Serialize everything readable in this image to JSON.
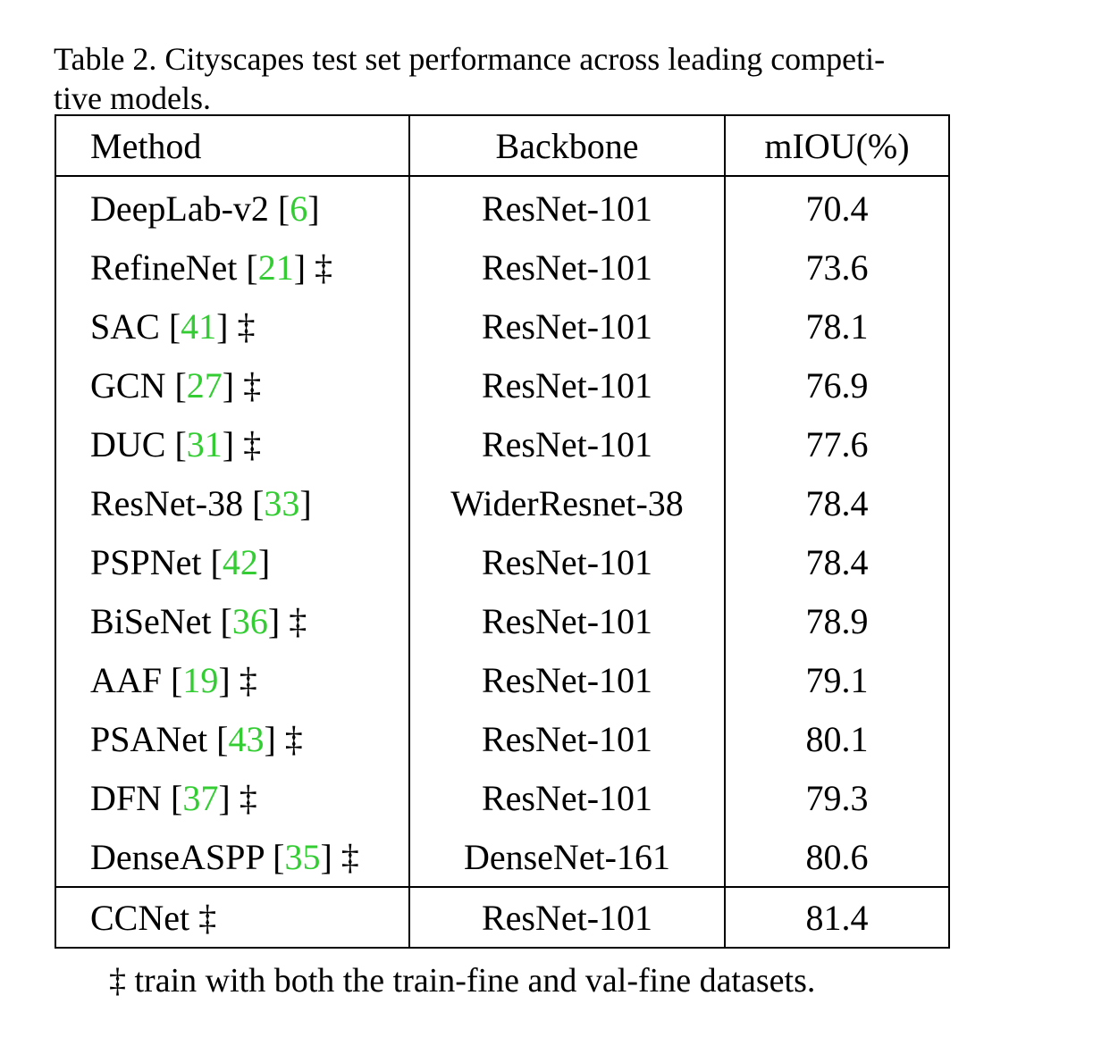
{
  "caption": "Table 2. Cityscapes test set performance across leading competi-tive models.",
  "caption_line1": "Table 2. Cityscapes test set performance across leading competi-",
  "caption_line2": "tive models.",
  "headers": {
    "method": "Method",
    "backbone": "Backbone",
    "miou": "mIOU(%)"
  },
  "rows": [
    {
      "method": "DeepLab-v2",
      "cite": "6",
      "dagger": "",
      "backbone": "ResNet-101",
      "miou": "70.4"
    },
    {
      "method": "RefineNet",
      "cite": "21",
      "dagger": "‡",
      "backbone": "ResNet-101",
      "miou": "73.6"
    },
    {
      "method": "SAC",
      "cite": "41",
      "dagger": "‡",
      "backbone": "ResNet-101",
      "miou": "78.1"
    },
    {
      "method": "GCN",
      "cite": "27",
      "dagger": "‡",
      "backbone": "ResNet-101",
      "miou": "76.9"
    },
    {
      "method": "DUC",
      "cite": "31",
      "dagger": "‡",
      "backbone": "ResNet-101",
      "miou": "77.6"
    },
    {
      "method": "ResNet-38",
      "cite": "33",
      "dagger": "",
      "backbone": "WiderResnet-38",
      "miou": "78.4"
    },
    {
      "method": "PSPNet",
      "cite": "42",
      "dagger": "",
      "backbone": "ResNet-101",
      "miou": "78.4"
    },
    {
      "method": "BiSeNet",
      "cite": "36",
      "dagger": "‡",
      "backbone": "ResNet-101",
      "miou": "78.9"
    },
    {
      "method": "AAF",
      "cite": "19",
      "dagger": "‡",
      "backbone": "ResNet-101",
      "miou": "79.1"
    },
    {
      "method": "PSANet",
      "cite": "43",
      "dagger": "‡",
      "backbone": "ResNet-101",
      "miou": "80.1"
    },
    {
      "method": "DFN",
      "cite": "37",
      "dagger": "‡",
      "backbone": "ResNet-101",
      "miou": "79.3"
    },
    {
      "method": "DenseASPP",
      "cite": "35",
      "dagger": "‡",
      "backbone": "DenseNet-161",
      "miou": "80.6"
    }
  ],
  "final_row": {
    "method": "CCNet",
    "dagger": "‡",
    "backbone": "ResNet-101",
    "miou": "81.4"
  },
  "footnote": "‡ train with both the train-fine and val-fine datasets.",
  "colors": {
    "citation": "#33cc33",
    "text": "#000000",
    "border": "#000000"
  }
}
